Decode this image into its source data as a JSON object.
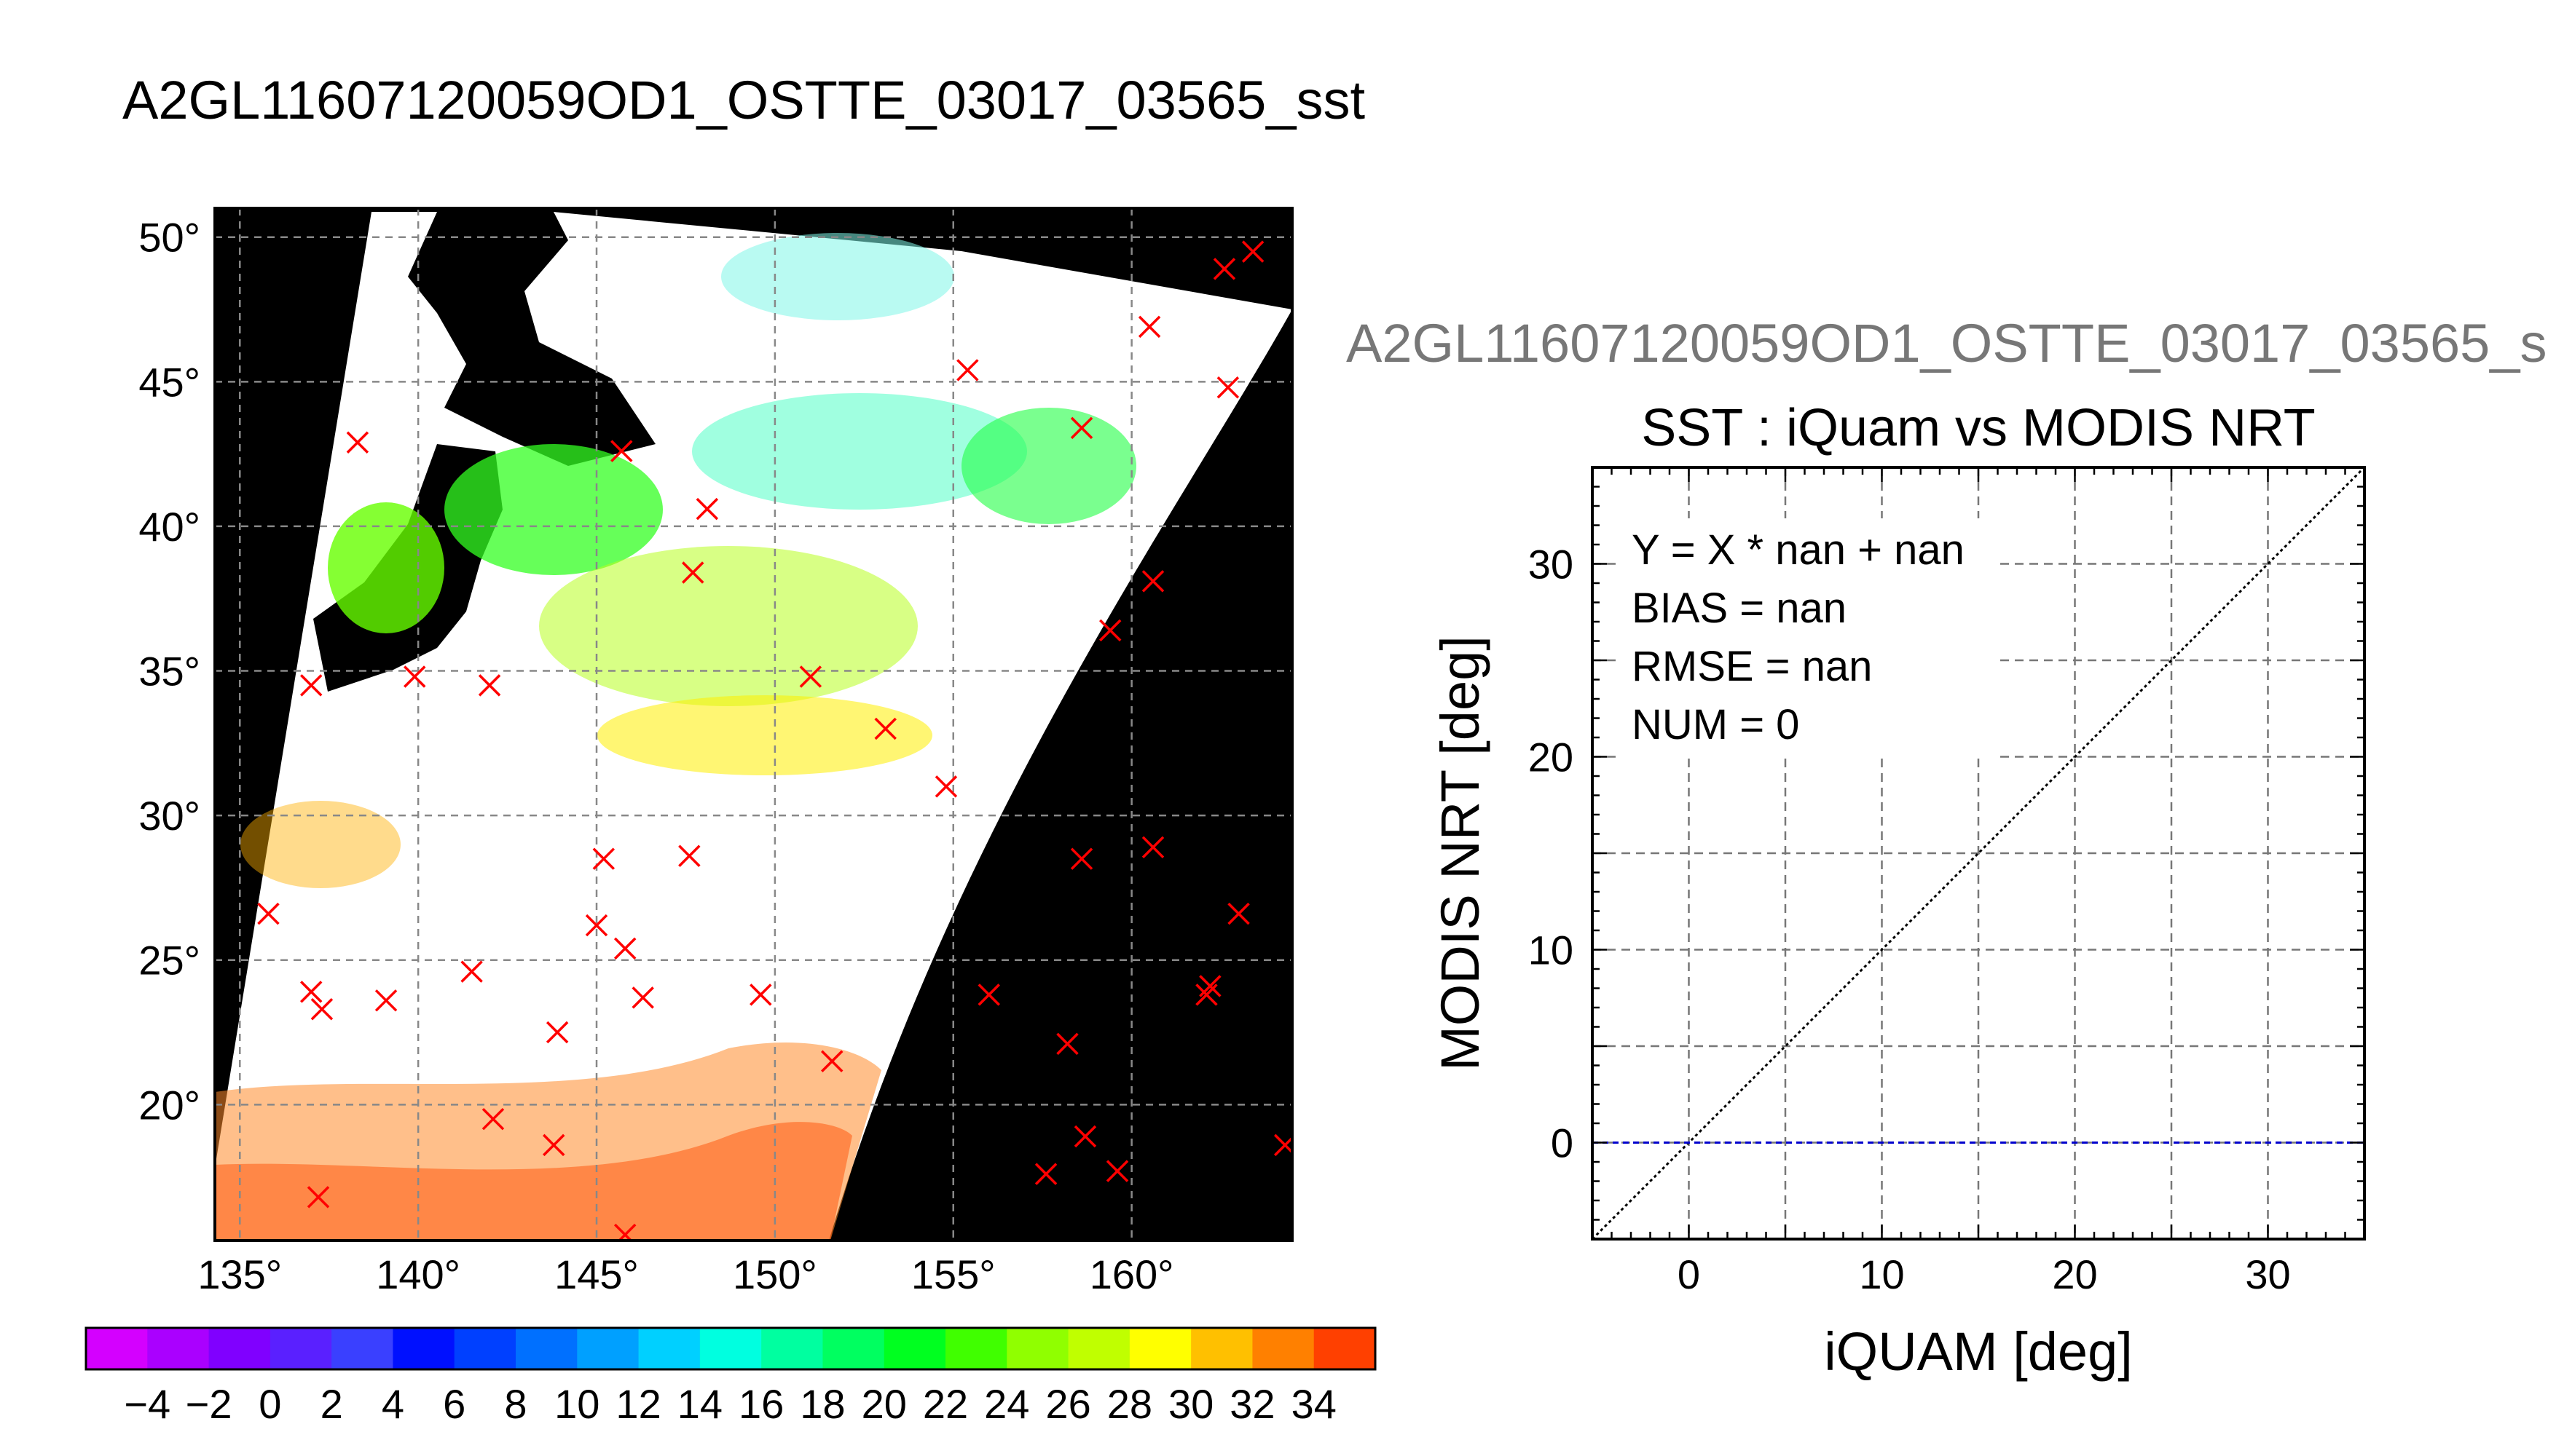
{
  "page": {
    "title": "A2GL11607120059OD1_OSTTE_03017_03565_sst"
  },
  "map": {
    "lon_ticks": [
      135,
      140,
      145,
      150,
      155,
      160
    ],
    "lat_ticks": [
      20,
      25,
      30,
      35,
      40,
      45,
      50
    ],
    "lon_range": [
      134.3,
      164.5
    ],
    "lat_range": [
      15.3,
      51.0
    ],
    "markers_label": "iQuam match-up locations (red X)",
    "markers": [
      [
        137.0,
        34.5
      ],
      [
        139.9,
        34.8
      ],
      [
        142.0,
        34.5
      ],
      [
        138.3,
        42.9
      ],
      [
        145.7,
        42.6
      ],
      [
        148.1,
        40.6
      ],
      [
        147.7,
        38.4
      ],
      [
        151.0,
        34.8
      ],
      [
        153.1,
        33.0
      ],
      [
        154.8,
        31.0
      ],
      [
        155.4,
        45.4
      ],
      [
        158.6,
        43.4
      ],
      [
        160.5,
        46.9
      ],
      [
        162.6,
        48.9
      ],
      [
        163.4,
        49.5
      ],
      [
        162.7,
        44.8
      ],
      [
        160.6,
        38.1
      ],
      [
        159.4,
        36.4
      ],
      [
        158.6,
        28.5
      ],
      [
        160.6,
        28.9
      ],
      [
        163.0,
        26.6
      ],
      [
        162.2,
        24.1
      ],
      [
        162.1,
        23.8
      ],
      [
        156.0,
        23.8
      ],
      [
        158.2,
        22.1
      ],
      [
        157.6,
        17.6
      ],
      [
        158.7,
        18.9
      ],
      [
        159.6,
        17.7
      ],
      [
        164.3,
        18.6
      ],
      [
        151.6,
        21.5
      ],
      [
        145.2,
        28.5
      ],
      [
        147.6,
        28.6
      ],
      [
        145.0,
        26.2
      ],
      [
        145.8,
        25.4
      ],
      [
        146.3,
        23.7
      ],
      [
        149.6,
        23.8
      ],
      [
        143.9,
        22.5
      ],
      [
        141.5,
        24.6
      ],
      [
        142.1,
        19.5
      ],
      [
        143.8,
        18.6
      ],
      [
        139.1,
        23.6
      ],
      [
        137.3,
        23.3
      ],
      [
        137.0,
        23.9
      ],
      [
        135.8,
        26.6
      ],
      [
        137.2,
        16.8
      ],
      [
        145.8,
        15.5
      ]
    ]
  },
  "colorbar": {
    "tick_labels": [
      "-4",
      "-2",
      "0",
      "2",
      "4",
      "6",
      "8",
      "10",
      "12",
      "14",
      "16",
      "18",
      "20",
      "22",
      "24",
      "26",
      "28",
      "30",
      "32",
      "34"
    ],
    "min": -6,
    "max": 36,
    "step": 2,
    "colors": [
      "#d400ff",
      "#aa00ff",
      "#8000ff",
      "#5a20ff",
      "#3a40ff",
      "#0010ff",
      "#0040ff",
      "#0070ff",
      "#00a0ff",
      "#00d0ff",
      "#00ffe0",
      "#00ffa0",
      "#00ff60",
      "#00ff20",
      "#40ff00",
      "#90ff00",
      "#c0ff00",
      "#ffff00",
      "#ffc000",
      "#ff8000",
      "#ff4000"
    ]
  },
  "scatter": {
    "subtitle": "A2GL11607120059OD1_OSTTE_03017_03565_s",
    "title": "SST : iQuam vs MODIS NRT",
    "xlabel": "iQUAM [deg]",
    "ylabel": "MODIS NRT [deg]",
    "stats": {
      "fit": "Y = X * nan + nan",
      "bias": "BIAS = nan",
      "rmse": "RMSE = nan",
      "num": "NUM = 0"
    }
  },
  "chart_data": {
    "type": "scatter",
    "title": "SST : iQuam vs MODIS NRT",
    "xlabel": "iQUAM [deg]",
    "ylabel": "MODIS NRT [deg]",
    "xlim": [
      -5,
      35
    ],
    "ylim": [
      -5,
      35
    ],
    "x_ticks": [
      0,
      10,
      20,
      30
    ],
    "y_ticks": [
      0,
      10,
      20,
      30
    ],
    "grid": true,
    "points": [],
    "lines": [
      {
        "style": "dotted",
        "color": "#000000",
        "x": [
          -5,
          35
        ],
        "y": [
          -5,
          35
        ]
      },
      {
        "style": "dashed",
        "color": "#0000cc",
        "x": [
          -5,
          35
        ],
        "y": [
          0,
          0
        ]
      }
    ]
  }
}
